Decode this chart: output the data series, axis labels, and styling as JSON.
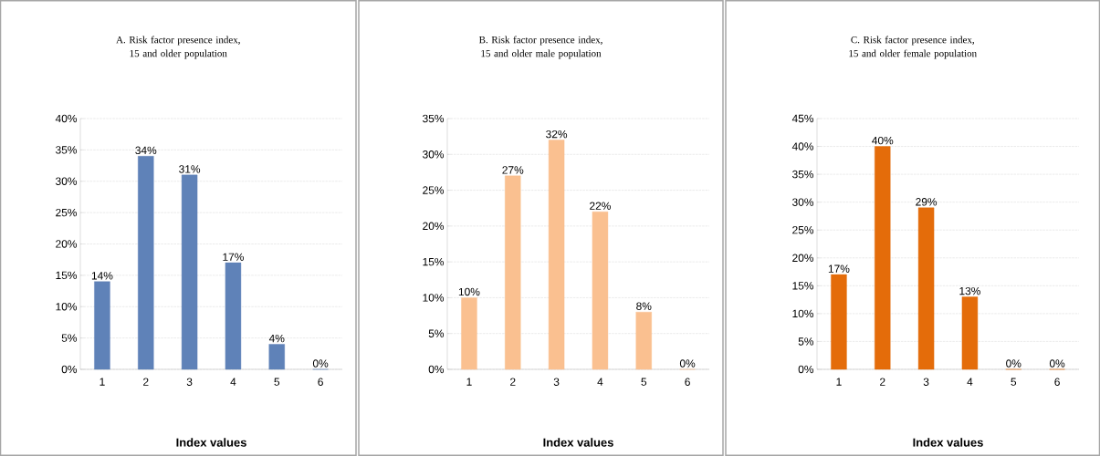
{
  "chart_data": [
    {
      "type": "bar",
      "title": "A. Risk factor presence index, 15 and older population",
      "xlabel": "Index values",
      "categories": [
        "1",
        "2",
        "3",
        "4",
        "5",
        "6"
      ],
      "values": [
        14,
        34,
        31,
        17,
        4,
        0
      ],
      "value_labels": [
        "14%",
        "34%",
        "31%",
        "17%",
        "4%",
        "0%"
      ],
      "color": "#5f82b8",
      "ylim": [
        0,
        40
      ],
      "yticks": [
        {
          "value": 0,
          "label": "0%"
        },
        {
          "value": 5,
          "label": "5%"
        },
        {
          "value": 10,
          "label": "10%"
        },
        {
          "value": 15,
          "label": "15%"
        },
        {
          "value": 20,
          "label": "20%"
        },
        {
          "value": 25,
          "label": "25%"
        },
        {
          "value": 30,
          "label": "30%"
        },
        {
          "value": 35,
          "label": "35%"
        },
        {
          "value": 40,
          "label": "40%"
        }
      ],
      "grid": "y"
    },
    {
      "type": "bar",
      "title": "B. Risk factor presence index, 15 and older male population",
      "xlabel": "Index values",
      "categories": [
        "1",
        "2",
        "3",
        "4",
        "5",
        "6"
      ],
      "values": [
        10,
        27,
        32,
        22,
        8,
        0
      ],
      "value_labels": [
        "10%",
        "27%",
        "32%",
        "22%",
        "8%",
        "0%"
      ],
      "color": "#fac090",
      "ylim": [
        0,
        35
      ],
      "yticks": [
        {
          "value": 0,
          "label": "0%"
        },
        {
          "value": 5,
          "label": "5%"
        },
        {
          "value": 10,
          "label": "10%"
        },
        {
          "value": 15,
          "label": "15%"
        },
        {
          "value": 20,
          "label": "20%"
        },
        {
          "value": 25,
          "label": "25%"
        },
        {
          "value": 30,
          "label": "30%"
        },
        {
          "value": 35,
          "label": "35%"
        }
      ],
      "grid": "y"
    },
    {
      "type": "bar",
      "title": "C. Risk factor presence index, 15 and older female population",
      "xlabel": "Index values",
      "categories": [
        "1",
        "2",
        "3",
        "4",
        "5",
        "6"
      ],
      "values": [
        17,
        40,
        29,
        13,
        0,
        0
      ],
      "value_labels": [
        "17%",
        "40%",
        "29%",
        "13%",
        "0%",
        "0%"
      ],
      "color": "#e46c0a",
      "ylim": [
        0,
        45
      ],
      "yticks": [
        {
          "value": 0,
          "label": "0%"
        },
        {
          "value": 5,
          "label": "5%"
        },
        {
          "value": 10,
          "label": "10%"
        },
        {
          "value": 15,
          "label": "15%"
        },
        {
          "value": 20,
          "label": "20%"
        },
        {
          "value": 25,
          "label": "25%"
        },
        {
          "value": 30,
          "label": "30%"
        },
        {
          "value": 35,
          "label": "35%"
        },
        {
          "value": 40,
          "label": "40%"
        },
        {
          "value": 45,
          "label": "45%"
        }
      ],
      "grid": "y"
    }
  ]
}
